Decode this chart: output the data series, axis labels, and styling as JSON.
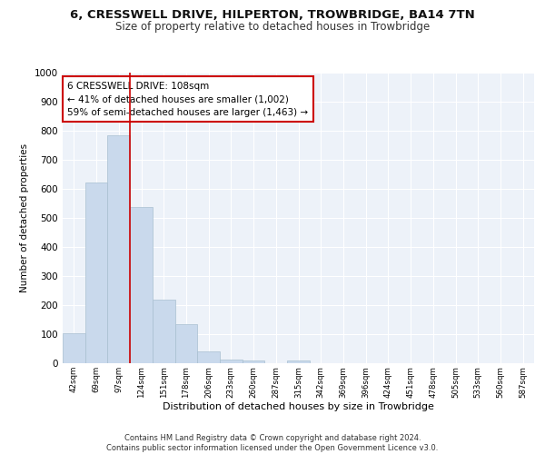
{
  "title": "6, CRESSWELL DRIVE, HILPERTON, TROWBRIDGE, BA14 7TN",
  "subtitle": "Size of property relative to detached houses in Trowbridge",
  "xlabel": "Distribution of detached houses by size in Trowbridge",
  "ylabel": "Number of detached properties",
  "categories": [
    "42sqm",
    "69sqm",
    "97sqm",
    "124sqm",
    "151sqm",
    "178sqm",
    "206sqm",
    "233sqm",
    "260sqm",
    "287sqm",
    "315sqm",
    "342sqm",
    "369sqm",
    "396sqm",
    "424sqm",
    "451sqm",
    "478sqm",
    "505sqm",
    "533sqm",
    "560sqm",
    "587sqm"
  ],
  "values": [
    102,
    622,
    783,
    537,
    220,
    133,
    40,
    13,
    10,
    0,
    10,
    0,
    0,
    0,
    0,
    0,
    0,
    0,
    0,
    0,
    0
  ],
  "bar_color": "#c9d9ec",
  "bar_edge_color": "#a8bfd0",
  "vline_x": 2.5,
  "vline_color": "#cc0000",
  "annotation_text": "6 CRESSWELL DRIVE: 108sqm\n← 41% of detached houses are smaller (1,002)\n59% of semi-detached houses are larger (1,463) →",
  "annotation_box_color": "#ffffff",
  "annotation_box_edge": "#cc0000",
  "background_color": "#edf2f9",
  "grid_color": "#ffffff",
  "ylim": [
    0,
    1000
  ],
  "footer_line1": "Contains HM Land Registry data © Crown copyright and database right 2024.",
  "footer_line2": "Contains public sector information licensed under the Open Government Licence v3.0."
}
